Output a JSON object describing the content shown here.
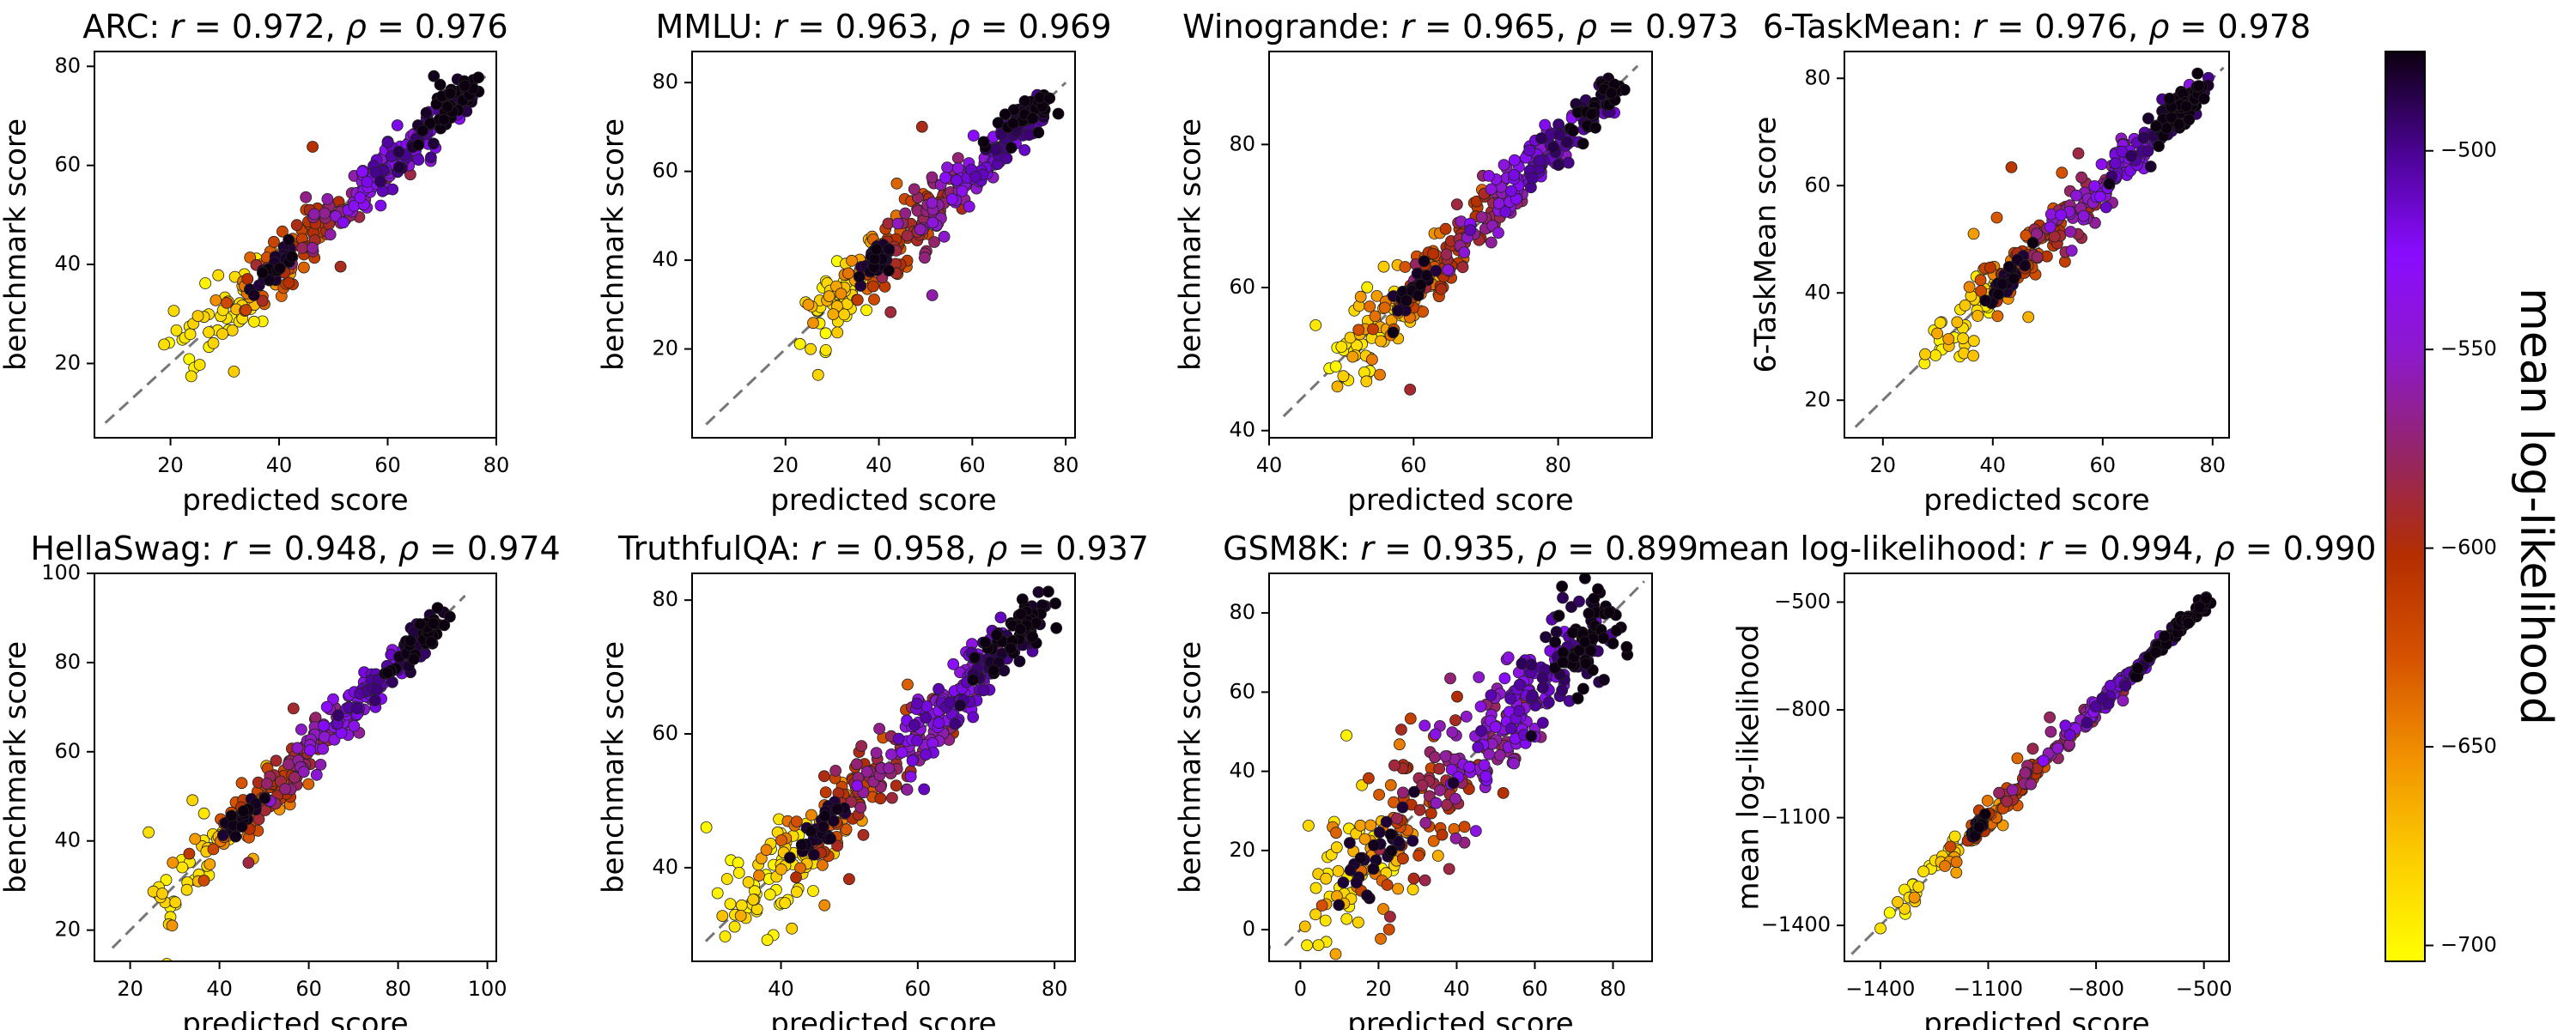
{
  "figure": {
    "colorbar": {
      "label": "mean log-likelihood",
      "range": [
        -704,
        -475
      ],
      "ticks": [
        -500,
        -550,
        -600,
        -650,
        -700
      ],
      "tick_labels": [
        "−500",
        "−550",
        "−600",
        "−650",
        "−700"
      ],
      "colormap": "gnuplot2-like",
      "colors": [
        "#ffff00",
        "#fcce00",
        "#f29200",
        "#d65200",
        "#b42e00",
        "#952565",
        "#8d19cb",
        "#8a0cff",
        "#4a0393",
        "#0c0010"
      ]
    }
  },
  "chart_data": [
    {
      "type": "scatter",
      "name": "ARC",
      "title_name": "ARC",
      "title_r": "0.972",
      "title_rho": "0.976",
      "xlabel": "predicted score",
      "ylabel": "benchmark score",
      "xlim": [
        6,
        80
      ],
      "ylim": [
        5,
        83
      ],
      "xticks": [
        20,
        40,
        60,
        80
      ],
      "yticks": [
        20,
        40,
        60,
        80
      ],
      "xtick_labels": [
        "20",
        "40",
        "60",
        "80"
      ],
      "ytick_labels": [
        "20",
        "40",
        "60",
        "80"
      ],
      "diagonal": [
        8,
        78
      ],
      "main_range": [
        22,
        76
      ],
      "scatter_sd": 2.6,
      "outlier_spread": 10,
      "n_points": 360,
      "seed": 11
    },
    {
      "type": "scatter",
      "name": "MMLU",
      "title_name": "MMLU",
      "title_r": "0.963",
      "title_rho": "0.969",
      "xlabel": "predicted score",
      "ylabel": "benchmark score",
      "xlim": [
        0,
        82
      ],
      "ylim": [
        0,
        87
      ],
      "xticks": [
        20,
        40,
        60,
        80
      ],
      "yticks": [
        20,
        40,
        60,
        80
      ],
      "xtick_labels": [
        "20",
        "40",
        "60",
        "80"
      ],
      "ytick_labels": [
        "20",
        "40",
        "60",
        "80"
      ],
      "diagonal": [
        3,
        80
      ],
      "main_range": [
        24,
        76
      ],
      "scatter_sd": 2.8,
      "outlier_spread": 12,
      "n_points": 360,
      "seed": 23
    },
    {
      "type": "scatter",
      "name": "Winogrande",
      "title_name": "Winogrande",
      "title_r": "0.965",
      "title_rho": "0.973",
      "xlabel": "predicted score",
      "ylabel": "benchmark score",
      "xlim": [
        40,
        93
      ],
      "ylim": [
        39,
        93
      ],
      "xticks": [
        40,
        60,
        80
      ],
      "yticks": [
        40,
        60,
        80
      ],
      "xtick_labels": [
        "40",
        "60",
        "80"
      ],
      "ytick_labels": [
        "40",
        "60",
        "80"
      ],
      "diagonal": [
        42,
        91
      ],
      "main_range": [
        48,
        88
      ],
      "scatter_sd": 1.9,
      "outlier_spread": 8,
      "n_points": 360,
      "seed": 37
    },
    {
      "type": "scatter",
      "name": "6-TaskMean",
      "title_name": "6-TaskMean",
      "title_r": "0.976",
      "title_rho": "0.978",
      "xlabel": "predicted score",
      "ylabel": "6-TaskMean score",
      "xlim": [
        13,
        83
      ],
      "ylim": [
        13,
        85
      ],
      "xticks": [
        20,
        40,
        60,
        80
      ],
      "yticks": [
        20,
        40,
        60,
        80
      ],
      "xtick_labels": [
        "20",
        "40",
        "60",
        "80"
      ],
      "ytick_labels": [
        "20",
        "40",
        "60",
        "80"
      ],
      "diagonal": [
        15,
        82
      ],
      "main_range": [
        28,
        78
      ],
      "scatter_sd": 2.2,
      "outlier_spread": 8,
      "n_points": 360,
      "seed": 41
    },
    {
      "type": "scatter",
      "name": "HellaSwag",
      "title_name": "HellaSwag",
      "title_r": "0.948",
      "title_rho": "0.974",
      "xlabel": "predicted score",
      "ylabel": "benchmark score",
      "xlim": [
        12,
        102
      ],
      "ylim": [
        13,
        100
      ],
      "xticks": [
        20,
        40,
        60,
        80,
        100
      ],
      "yticks": [
        20,
        40,
        60,
        80,
        100
      ],
      "xtick_labels": [
        "20",
        "40",
        "60",
        "80",
        "100"
      ],
      "ytick_labels": [
        "20",
        "40",
        "60",
        "80",
        "100"
      ],
      "diagonal": [
        16,
        95
      ],
      "main_range": [
        25,
        90
      ],
      "scatter_sd": 2.4,
      "outlier_spread": 14,
      "n_points": 360,
      "seed": 53
    },
    {
      "type": "scatter",
      "name": "TruthfulQA",
      "title_name": "TruthfulQA",
      "title_r": "0.958",
      "title_rho": "0.937",
      "xlabel": "predicted score",
      "ylabel": "benchmark score",
      "xlim": [
        27,
        83
      ],
      "ylim": [
        26,
        84
      ],
      "xticks": [
        40,
        60,
        80
      ],
      "yticks": [
        40,
        60,
        80
      ],
      "xtick_labels": [
        "40",
        "60",
        "80"
      ],
      "ytick_labels": [
        "40",
        "60",
        "80"
      ],
      "diagonal": [
        29,
        80
      ],
      "main_range": [
        32,
        78
      ],
      "scatter_sd": 2.6,
      "outlier_spread": 7,
      "n_points": 420,
      "seed": 67
    },
    {
      "type": "scatter",
      "name": "GSM8K",
      "title_name": "GSM8K",
      "title_r": "0.935",
      "title_rho": "0.899",
      "xlabel": "predicted score",
      "ylabel": "benchmark score",
      "xlim": [
        -8,
        90
      ],
      "ylim": [
        -8,
        90
      ],
      "xticks": [
        0,
        20,
        40,
        60,
        80
      ],
      "yticks": [
        0,
        20,
        40,
        60,
        80
      ],
      "xtick_labels": [
        "0",
        "20",
        "40",
        "60",
        "80"
      ],
      "ytick_labels": [
        "0",
        "20",
        "40",
        "60",
        "80"
      ],
      "diagonal": [
        -4,
        88
      ],
      "main_range": [
        0,
        78
      ],
      "scatter_sd": 7,
      "outlier_spread": 18,
      "n_points": 420,
      "seed": 79
    },
    {
      "type": "scatter",
      "name": "mean log-likelihood",
      "title_name": "mean log-likelihood",
      "title_r": "0.994",
      "title_rho": "0.990",
      "xlabel": "predicted score",
      "ylabel": "mean log-likelihood",
      "xlim": [
        -1500,
        -430
      ],
      "ylim": [
        -1500,
        -420
      ],
      "xticks": [
        -1400,
        -1100,
        -800,
        -500
      ],
      "yticks": [
        -1400,
        -1100,
        -800,
        -500
      ],
      "xtick_labels": [
        "−1400",
        "−1100",
        "−800",
        "−500"
      ],
      "ytick_labels": [
        "−1400",
        "−1100",
        "−800",
        "−500"
      ],
      "diagonal": [
        -1480,
        -480
      ],
      "main_range": [
        -1400,
        -490
      ],
      "scatter_sd": 14,
      "outlier_spread": 60,
      "n_points": 300,
      "seed": 97
    }
  ]
}
